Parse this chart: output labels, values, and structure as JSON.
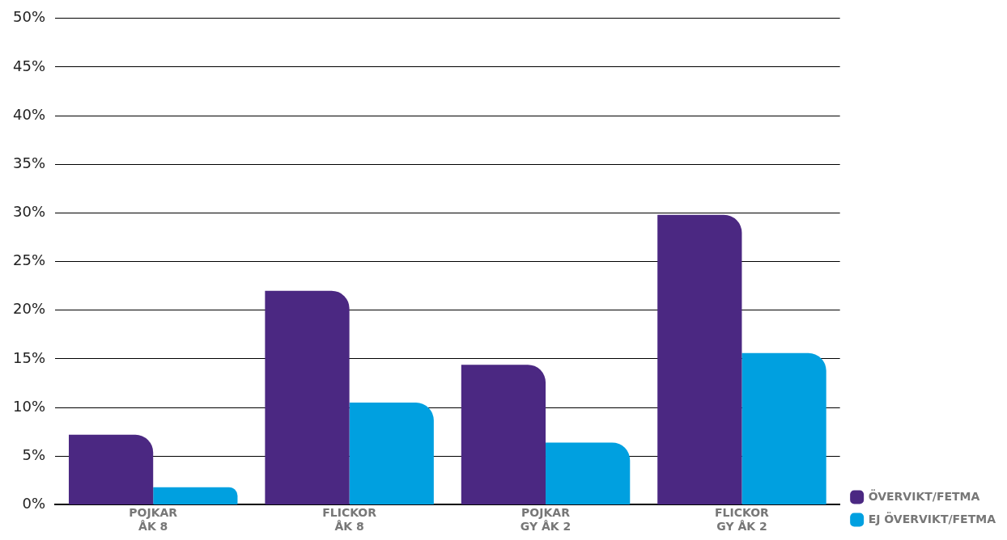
{
  "chart_data": {
    "type": "bar",
    "categories": [
      "POJKAR\nÅK 8",
      "FLICKOR\nÅK 8",
      "POJKAR\nGY ÅK 2",
      "FLICKOR\nGY ÅK 2"
    ],
    "series": [
      {
        "name": "ÖVERVIKT/FETMA",
        "color": "#4b2882",
        "values": [
          7.2,
          22,
          14.4,
          29.8
        ]
      },
      {
        "name": "EJ ÖVERVIKT/FETMA",
        "color": "#00a0e0",
        "values": [
          1.8,
          10.5,
          6.4,
          15.6
        ]
      }
    ],
    "ylim": [
      0,
      50
    ],
    "yticks": [
      {
        "value": 0,
        "label": "0%"
      },
      {
        "value": 5,
        "label": "5%"
      },
      {
        "value": 10,
        "label": "10%"
      },
      {
        "value": 15,
        "label": "15%"
      },
      {
        "value": 20,
        "label": "20%"
      },
      {
        "value": 25,
        "label": "25%"
      },
      {
        "value": 30,
        "label": "30%"
      },
      {
        "value": 35,
        "label": "35%"
      },
      {
        "value": 40,
        "label": "40%"
      },
      {
        "value": 45,
        "label": "45%"
      },
      {
        "value": 50,
        "label": "50%"
      }
    ],
    "grid": "y",
    "legend": "bottom right"
  }
}
